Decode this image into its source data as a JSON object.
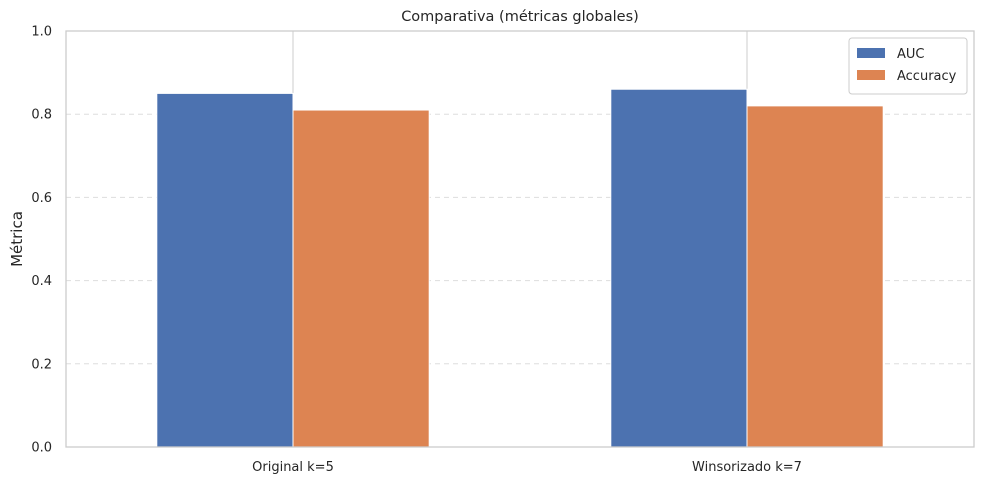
{
  "chart_data": {
    "type": "bar",
    "title": "Comparativa (métricas globales)",
    "xlabel": "",
    "ylabel": "Métrica",
    "categories": [
      "Original k=5",
      "Winsorizado k=7"
    ],
    "series": [
      {
        "name": "AUC",
        "color": "#4c72b0",
        "values": [
          0.85,
          0.86
        ]
      },
      {
        "name": "Accuracy",
        "color": "#dd8452",
        "values": [
          0.81,
          0.82
        ]
      }
    ],
    "ylim": [
      0,
      1
    ],
    "yticks": [
      "0.0",
      "0.2",
      "0.4",
      "0.6",
      "0.8",
      "1.0"
    ],
    "grid": "horizontal-dashed",
    "legend_position": "top-right"
  }
}
